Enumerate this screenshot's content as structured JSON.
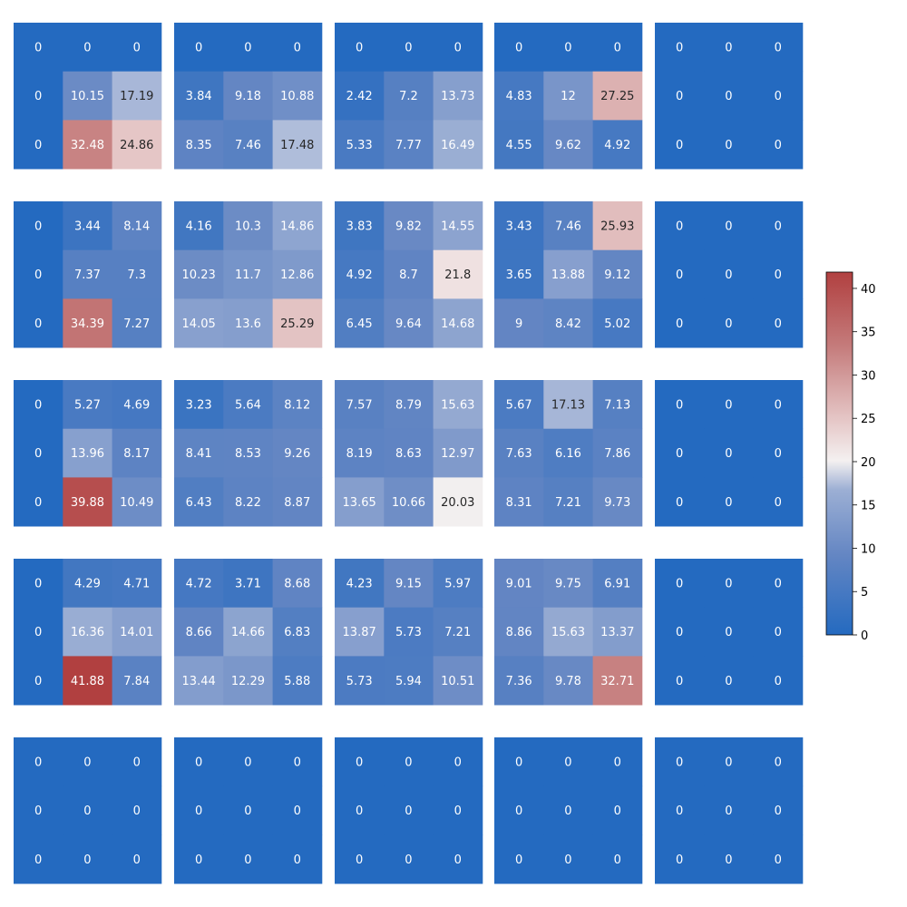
{
  "chart_data": {
    "type": "heatmap",
    "layout": "5x5 grid of 3x3 heatmaps",
    "colormap": "coolwarm",
    "colorbar": {
      "min": 0,
      "max": 41.88,
      "ticks": [
        0,
        5,
        10,
        15,
        20,
        25,
        30,
        35,
        40
      ],
      "tick_labels": [
        "0",
        "5",
        "10",
        "15",
        "20",
        "25",
        "30",
        "35",
        "40"
      ]
    },
    "grids": [
      [
        [
          [
            0,
            0,
            0
          ],
          [
            0,
            10.15,
            17.19
          ],
          [
            0,
            32.48,
            24.86
          ]
        ],
        [
          [
            0,
            0,
            0
          ],
          [
            3.84,
            9.18,
            10.88
          ],
          [
            8.35,
            7.46,
            17.48
          ]
        ],
        [
          [
            0,
            0,
            0
          ],
          [
            2.42,
            7.2,
            13.73
          ],
          [
            5.33,
            7.77,
            16.49
          ]
        ],
        [
          [
            0,
            0,
            0
          ],
          [
            4.83,
            12,
            27.25
          ],
          [
            4.55,
            9.62,
            4.92
          ]
        ],
        [
          [
            0,
            0,
            0
          ],
          [
            0,
            0,
            0
          ],
          [
            0,
            0,
            0
          ]
        ]
      ],
      [
        [
          [
            0,
            3.44,
            8.14
          ],
          [
            0,
            7.37,
            7.3
          ],
          [
            0,
            34.39,
            7.27
          ]
        ],
        [
          [
            4.16,
            10.3,
            14.86
          ],
          [
            10.23,
            11.7,
            12.86
          ],
          [
            14.05,
            13.6,
            25.29
          ]
        ],
        [
          [
            3.83,
            9.82,
            14.55
          ],
          [
            4.92,
            8.7,
            21.8
          ],
          [
            6.45,
            9.64,
            14.68
          ]
        ],
        [
          [
            3.43,
            7.46,
            25.93
          ],
          [
            3.65,
            13.88,
            9.12
          ],
          [
            9,
            8.42,
            5.02
          ]
        ],
        [
          [
            0,
            0,
            0
          ],
          [
            0,
            0,
            0
          ],
          [
            0,
            0,
            0
          ]
        ]
      ],
      [
        [
          [
            0,
            5.27,
            4.69
          ],
          [
            0,
            13.96,
            8.17
          ],
          [
            0,
            39.88,
            10.49
          ]
        ],
        [
          [
            3.23,
            5.64,
            8.12
          ],
          [
            8.41,
            8.53,
            9.26
          ],
          [
            6.43,
            8.22,
            8.87
          ]
        ],
        [
          [
            7.57,
            8.79,
            15.63
          ],
          [
            8.19,
            8.63,
            12.97
          ],
          [
            13.65,
            10.66,
            20.03
          ]
        ],
        [
          [
            5.67,
            17.13,
            7.13
          ],
          [
            7.63,
            6.16,
            7.86
          ],
          [
            8.31,
            7.21,
            9.73
          ]
        ],
        [
          [
            0,
            0,
            0
          ],
          [
            0,
            0,
            0
          ],
          [
            0,
            0,
            0
          ]
        ]
      ],
      [
        [
          [
            0,
            4.29,
            4.71
          ],
          [
            0,
            16.36,
            14.01
          ],
          [
            0,
            41.88,
            7.84
          ]
        ],
        [
          [
            4.72,
            3.71,
            8.68
          ],
          [
            8.66,
            14.66,
            6.83
          ],
          [
            13.44,
            12.29,
            5.88
          ]
        ],
        [
          [
            4.23,
            9.15,
            5.97
          ],
          [
            13.87,
            5.73,
            7.21
          ],
          [
            5.73,
            5.94,
            10.51
          ]
        ],
        [
          [
            9.01,
            9.75,
            6.91
          ],
          [
            8.86,
            15.63,
            13.37
          ],
          [
            7.36,
            9.78,
            32.71
          ]
        ],
        [
          [
            0,
            0,
            0
          ],
          [
            0,
            0,
            0
          ],
          [
            0,
            0,
            0
          ]
        ]
      ],
      [
        [
          [
            0,
            0,
            0
          ],
          [
            0,
            0,
            0
          ],
          [
            0,
            0,
            0
          ]
        ],
        [
          [
            0,
            0,
            0
          ],
          [
            0,
            0,
            0
          ],
          [
            0,
            0,
            0
          ]
        ],
        [
          [
            0,
            0,
            0
          ],
          [
            0,
            0,
            0
          ],
          [
            0,
            0,
            0
          ]
        ],
        [
          [
            0,
            0,
            0
          ],
          [
            0,
            0,
            0
          ],
          [
            0,
            0,
            0
          ]
        ],
        [
          [
            0,
            0,
            0
          ],
          [
            0,
            0,
            0
          ],
          [
            0,
            0,
            0
          ]
        ]
      ]
    ]
  }
}
